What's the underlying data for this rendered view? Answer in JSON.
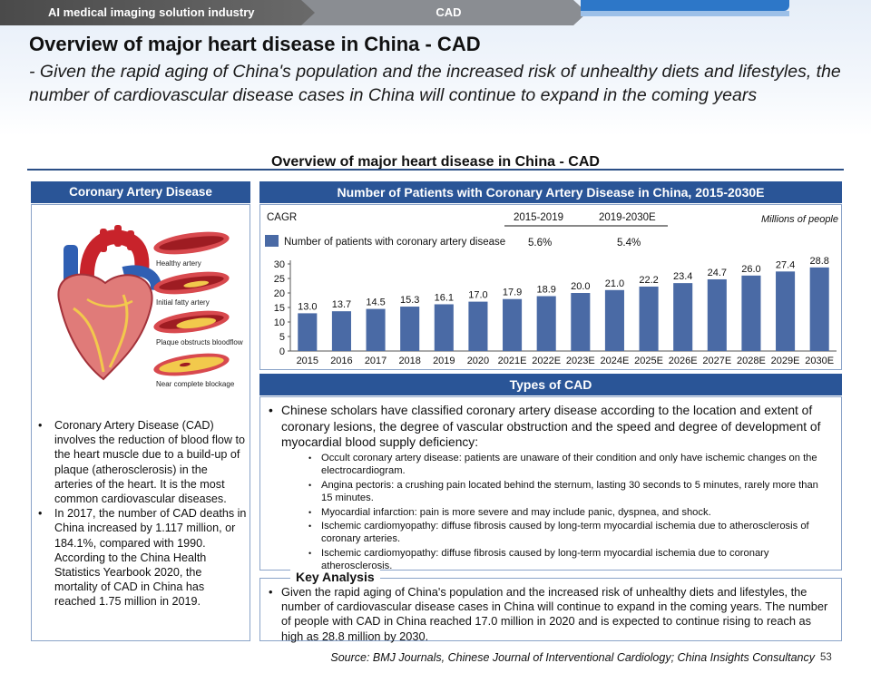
{
  "breadcrumb": {
    "section": "AI medical imaging solution industry",
    "topic": "CAD"
  },
  "page": {
    "title": "Overview of major heart disease in China - CAD",
    "subtitle": "- Given the rapid aging of China's population and the increased risk of unhealthy diets and lifestyles, the number of cardiovascular disease cases in China will continue to expand in the coming years",
    "section_title": "Overview of major heart disease in China - CAD",
    "page_number": "53",
    "source": "Source: BMJ Journals, Chinese Journal of Interventional Cardiology; China Insights Consultancy"
  },
  "left": {
    "header": "Coronary Artery Disease",
    "artery_labels": [
      "Healthy artery",
      "Initial fatty artery",
      "Plaque obstructs bloodflow",
      "Near complete blockage"
    ],
    "bullets": [
      "Coronary Artery Disease (CAD) involves the reduction of blood flow to the heart muscle due to a build-up of plaque (atherosclerosis) in the arteries of the heart. It is the most common cardiovascular diseases.",
      "In 2017, the number of CAD deaths in China increased by 1.117 million, or 184.1%, compared with 1990. According to the China Health Statistics Yearbook 2020, the mortality of CAD in China has reached 1.75 million in 2019."
    ]
  },
  "chart_header": "Number of Patients with Coronary Artery Disease in China, 2015-2030E",
  "chart_data": {
    "type": "bar",
    "title": "Number of Patients with Coronary Artery Disease in China, 2015-2030E",
    "unit": "Millions of people",
    "categories": [
      "2015",
      "2016",
      "2017",
      "2018",
      "2019",
      "2020",
      "2021E",
      "2022E",
      "2023E",
      "2024E",
      "2025E",
      "2026E",
      "2027E",
      "2028E",
      "2029E",
      "2030E"
    ],
    "values": [
      13.0,
      13.7,
      14.5,
      15.3,
      16.1,
      17.0,
      17.9,
      18.9,
      20.0,
      21.0,
      22.2,
      23.4,
      24.7,
      26.0,
      27.4,
      28.8
    ],
    "value_labels": [
      "13.0",
      "13.7",
      "14.5",
      "15.3",
      "16.1",
      "17.0",
      "17.9",
      "18.9",
      "20.0",
      "21.0",
      "22.2",
      "23.4",
      "24.7",
      "26.0",
      "27.4",
      "28.8"
    ],
    "ylim": [
      0,
      30
    ],
    "yticks": [
      "0",
      "5",
      "10",
      "15",
      "20",
      "25",
      "30"
    ],
    "legend": "Number of patients with coronary artery disease",
    "cagr_label": "CAGR",
    "cagr_periods": [
      "2015-2019",
      "2019-2030E"
    ],
    "cagr_values": [
      "5.6%",
      "5.4%"
    ],
    "bar_color": "#4a6aa5"
  },
  "types": {
    "header": "Types of CAD",
    "intro": "Chinese scholars have classified coronary artery disease according to the location and extent of coronary lesions, the degree of vascular obstruction and the speed and degree of development of myocardial blood supply deficiency:",
    "items": [
      "Occult coronary artery disease: patients are unaware of their condition and only have ischemic changes on the electrocardiogram.",
      "Angina pectoris: a crushing pain located behind the sternum, lasting 30 seconds to 5 minutes, rarely more than 15 minutes.",
      "Myocardial infarction: pain is more severe and may include panic, dyspnea, and shock.",
      "Ischemic cardiomyopathy: diffuse fibrosis caused by long-term myocardial ischemia due to atherosclerosis of coronary arteries.",
      "Ischemic cardiomyopathy: diffuse fibrosis caused by long-term myocardial ischemia due to coronary atherosclerosis."
    ]
  },
  "key_analysis": {
    "label": "Key Analysis",
    "text": "Given the rapid aging of China's population and the increased risk of unhealthy diets and lifestyles, the number of cardiovascular disease cases in China will continue to expand in the coming years. The number of people with CAD in China reached 17.0 million in 2020 and is expected to continue rising to reach as high as 28.8 million by 2030."
  }
}
